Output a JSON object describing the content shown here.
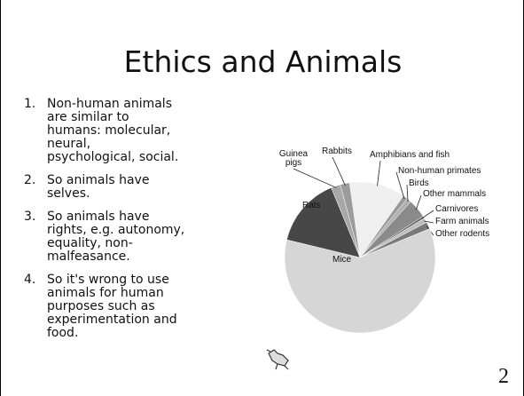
{
  "slide": {
    "title": "Ethics and Animals",
    "items": [
      "Non-human animals are similar to humans: molecular, neural, psychological, social.",
      "So animals have selves.",
      "So animals have rights, e.g. autonomy, equality, non-malfeasance.",
      "So it's wrong to use animals for human purposes such as experimentation and food."
    ],
    "page_number": "2"
  },
  "chart_data": {
    "type": "pie",
    "categories": [
      "Amphibians and fish",
      "Non-human primates",
      "Birds",
      "Other mammals",
      "Carnivores",
      "Farm animals",
      "Other rodents",
      "Mice",
      "Rats",
      "Guinea pigs",
      "Rabbits"
    ],
    "values": [
      12,
      1,
      1,
      4,
      0.5,
      1,
      1.5,
      60,
      15,
      2,
      2
    ],
    "colors": [
      "#efefef",
      "#9a9a9a",
      "#b0b0b0",
      "#8a8a8a",
      "#666666",
      "#bdbdbd",
      "#7a7a7a",
      "#d6d6d6",
      "#474747",
      "#a8a8a8",
      "#9c9c9c"
    ]
  }
}
